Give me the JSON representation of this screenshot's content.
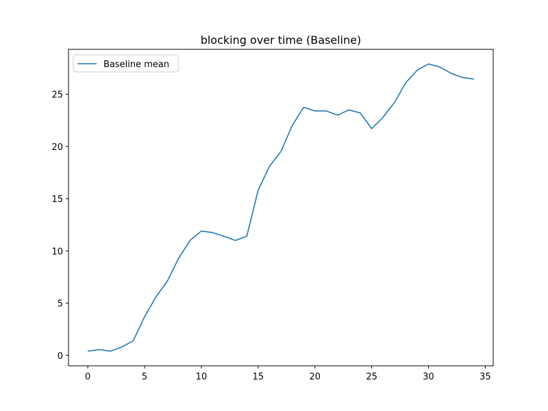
{
  "chart_data": {
    "type": "line",
    "title": "blocking over time (Baseline)",
    "xlabel": "",
    "ylabel": "",
    "xlim": [
      -1.7,
      35.7
    ],
    "ylim": [
      -1.0,
      29.3
    ],
    "xticks": [
      0,
      5,
      10,
      15,
      20,
      25,
      30,
      35
    ],
    "yticks": [
      0,
      5,
      10,
      15,
      20,
      25
    ],
    "grid": false,
    "legend_position": "upper-left",
    "series": [
      {
        "name": "Baseline mean",
        "color": "#1f77b4",
        "x": [
          0,
          1,
          2,
          3,
          4,
          5,
          6,
          7,
          8,
          9,
          10,
          11,
          12,
          13,
          14,
          15,
          16,
          17,
          18,
          19,
          20,
          21,
          22,
          23,
          24,
          25,
          26,
          27,
          28,
          29,
          30,
          31,
          32,
          33,
          34
        ],
        "y": [
          0.4,
          0.55,
          0.4,
          0.8,
          1.4,
          3.7,
          5.6,
          7.1,
          9.3,
          11.0,
          11.9,
          11.75,
          11.4,
          11.0,
          11.4,
          15.8,
          18.1,
          19.5,
          22.0,
          23.75,
          23.4,
          23.4,
          23.0,
          23.5,
          23.2,
          21.7,
          22.8,
          24.2,
          26.1,
          27.3,
          27.9,
          27.6,
          27.0,
          26.6,
          26.45
        ]
      }
    ]
  }
}
